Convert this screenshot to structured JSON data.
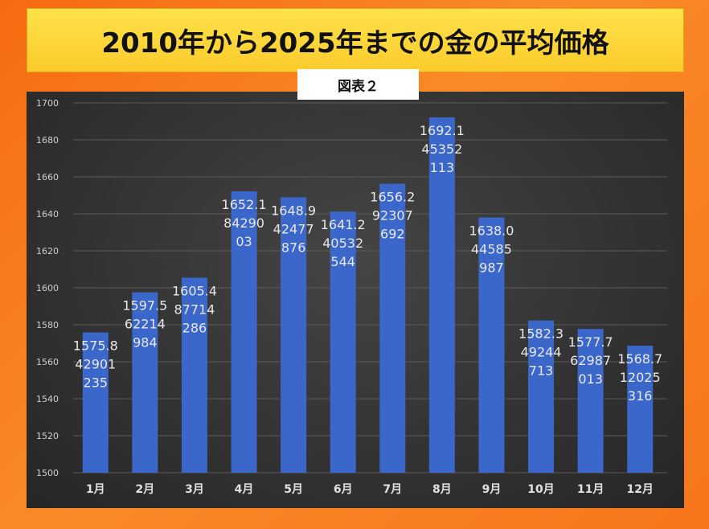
{
  "title": "2010年から2025年までの金の平均価格",
  "tag": "図表２",
  "chart_data": {
    "type": "bar",
    "categories": [
      "1月",
      "2月",
      "3月",
      "4月",
      "5月",
      "6月",
      "7月",
      "8月",
      "9月",
      "10月",
      "11月",
      "12月"
    ],
    "values": [
      1575.842901235,
      1597.562214984,
      1605.487714286,
      1652.18429003,
      1648.942477876,
      1641.240532544,
      1656.292307692,
      1692.145352113,
      1638.044585987,
      1582.349244713,
      1577.762987013,
      1568.712025316
    ],
    "data_labels": [
      [
        "1575.8",
        "42901",
        "235"
      ],
      [
        "1597.5",
        "62214",
        "984"
      ],
      [
        "1605.4",
        "87714",
        "286"
      ],
      [
        "1652.1",
        "84290",
        "03"
      ],
      [
        "1648.9",
        "42477",
        "876"
      ],
      [
        "1641.2",
        "40532",
        "544"
      ],
      [
        "1656.2",
        "92307",
        "692"
      ],
      [
        "1692.1",
        "45352",
        "113"
      ],
      [
        "1638.0",
        "44585",
        "987"
      ],
      [
        "1582.3",
        "49244",
        "713"
      ],
      [
        "1577.7",
        "62987",
        "013"
      ],
      [
        "1568.7",
        "12025",
        "316"
      ]
    ],
    "ylim": [
      1500,
      1700
    ],
    "yticks": [
      1500,
      1520,
      1540,
      1560,
      1580,
      1600,
      1620,
      1640,
      1660,
      1680,
      1700
    ],
    "bar_color": "#3a67c9",
    "grid": true
  }
}
